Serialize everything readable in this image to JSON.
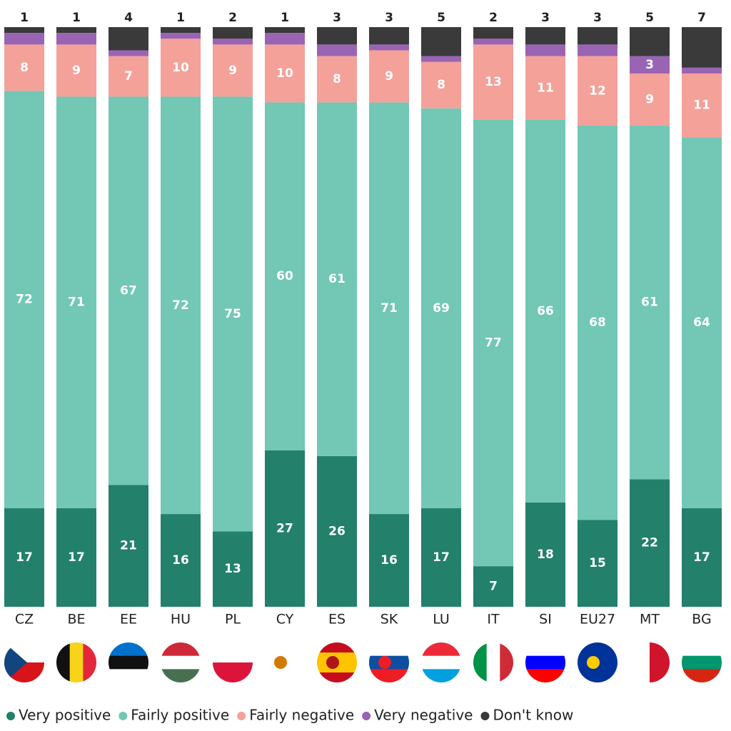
{
  "chart_data": {
    "type": "stacked_bar",
    "categories": [
      "CZ",
      "BE",
      "EE",
      "HU",
      "PL",
      "CY",
      "ES",
      "SK",
      "LU",
      "IT",
      "SI",
      "EU27",
      "MT",
      "BG"
    ],
    "series": [
      {
        "name": "Very positive",
        "color": "#23806b",
        "values": [
          17,
          17,
          21,
          16,
          13,
          27,
          26,
          16,
          17,
          7,
          18,
          15,
          22,
          17
        ]
      },
      {
        "name": "Fairly positive",
        "color": "#72c7b5",
        "values": [
          72,
          71,
          67,
          72,
          75,
          60,
          61,
          71,
          69,
          77,
          66,
          68,
          61,
          64
        ]
      },
      {
        "name": "Fairly negative",
        "color": "#f4a19a",
        "values": [
          8,
          9,
          7,
          10,
          9,
          10,
          8,
          9,
          8,
          13,
          11,
          12,
          9,
          11
        ]
      },
      {
        "name": "Very negative",
        "color": "#9a64b4",
        "values": [
          2,
          2,
          1,
          1,
          1,
          2,
          2,
          1,
          1,
          1,
          2,
          2,
          3,
          1
        ]
      },
      {
        "name": "Don't know",
        "color": "#3a3a3a",
        "values": [
          1,
          1,
          4,
          1,
          2,
          1,
          3,
          3,
          5,
          2,
          3,
          3,
          5,
          7
        ]
      }
    ]
  }
}
